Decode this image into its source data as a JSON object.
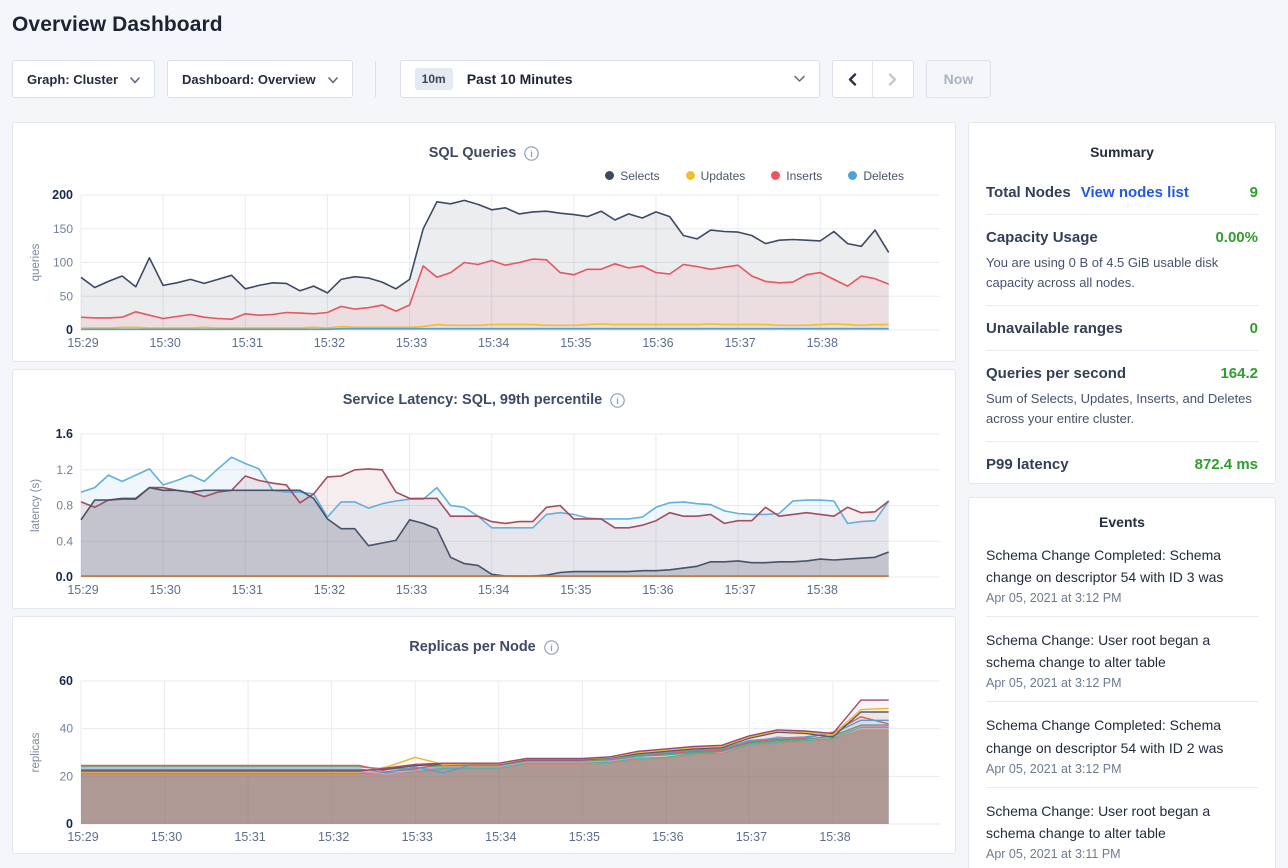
{
  "page_title": "Overview Dashboard",
  "toolbar": {
    "graph_label": "Graph: Cluster",
    "dashboard_label": "Dashboard: Overview",
    "time_badge": "10m",
    "time_label": "Past 10 Minutes",
    "now_label": "Now"
  },
  "summary": {
    "title": "Summary",
    "rows": [
      {
        "label": "Total Nodes",
        "link": "View nodes list",
        "value": "9"
      },
      {
        "label": "Capacity Usage",
        "value": "0.00%",
        "desc": "You are using 0 B of 4.5 GiB usable disk capacity across all nodes."
      },
      {
        "label": "Unavailable ranges",
        "value": "0"
      },
      {
        "label": "Queries per second",
        "value": "164.2",
        "desc": "Sum of Selects, Updates, Inserts, and Deletes across your entire cluster."
      },
      {
        "label": "P99 latency",
        "value": "872.4 ms"
      }
    ]
  },
  "events": {
    "title": "Events",
    "items": [
      {
        "text": "Schema Change Completed: Schema change on descriptor 54 with ID 3 was",
        "time": "Apr 05, 2021 at 3:12 PM"
      },
      {
        "text": "Schema Change: User root began a schema change to alter table",
        "time": "Apr 05, 2021 at 3:12 PM"
      },
      {
        "text": "Schema Change Completed: Schema change on descriptor 54 with ID 2 was",
        "time": "Apr 05, 2021 at 3:12 PM"
      },
      {
        "text": "Schema Change: User root began a schema change to alter table",
        "time": "Apr 05, 2021 at 3:11 PM"
      }
    ]
  },
  "colors": {
    "accent_green": "#2e9e2e",
    "link_blue": "#2458e4"
  },
  "chart_data": [
    {
      "type": "area",
      "title": "SQL Queries",
      "ylabel": "queries",
      "ylim": [
        0,
        200
      ],
      "yticks": [
        0,
        50,
        100,
        150,
        200
      ],
      "ytick_labels": [
        "0",
        "50",
        "100",
        "150",
        "200"
      ],
      "x_ticks": [
        "15:29",
        "15:30",
        "15:31",
        "15:32",
        "15:33",
        "15:34",
        "15:35",
        "15:36",
        "15:37",
        "15:38"
      ],
      "x_step_seconds": 10,
      "legend": true,
      "grid": true,
      "series": [
        {
          "name": "Selects",
          "color": "#3e4a63",
          "fill_opacity": 0.1,
          "values": [
            78,
            63,
            72,
            80,
            64,
            107,
            66,
            70,
            75,
            69,
            75,
            81,
            61,
            66,
            70,
            69,
            58,
            65,
            55,
            75,
            79,
            77,
            71,
            61,
            75,
            150,
            190,
            187,
            192,
            186,
            178,
            181,
            172,
            175,
            176,
            173,
            171,
            168,
            176,
            163,
            172,
            166,
            175,
            168,
            140,
            135,
            148,
            146,
            145,
            140,
            128,
            133,
            134,
            133,
            132,
            146,
            128,
            124,
            148,
            115
          ]
        },
        {
          "name": "Updates",
          "color": "#f2be2c",
          "fill_opacity": 0,
          "values": [
            3,
            3,
            3,
            4,
            4,
            3,
            3,
            3,
            3,
            4,
            3,
            3,
            3,
            3,
            3,
            3,
            3,
            4,
            3,
            5,
            4,
            4,
            4,
            4,
            4,
            5,
            8,
            7,
            7,
            7,
            8,
            8,
            8,
            8,
            7,
            7,
            7,
            8,
            9,
            8,
            8,
            8,
            8,
            8,
            8,
            8,
            9,
            8,
            8,
            8,
            8,
            7,
            7,
            7,
            8,
            9,
            8,
            7,
            8,
            8
          ]
        },
        {
          "name": "Inserts",
          "color": "#e8565f",
          "fill_opacity": 0.1,
          "values": [
            19,
            18,
            18,
            19,
            27,
            22,
            17,
            20,
            23,
            19,
            17,
            16,
            24,
            22,
            23,
            26,
            25,
            24,
            26,
            35,
            31,
            33,
            37,
            28,
            37,
            95,
            78,
            85,
            100,
            97,
            103,
            96,
            100,
            105,
            104,
            85,
            82,
            90,
            90,
            98,
            92,
            95,
            85,
            83,
            97,
            94,
            90,
            93,
            96,
            80,
            72,
            70,
            71,
            82,
            85,
            75,
            65,
            80,
            76,
            68
          ]
        },
        {
          "name": "Deletes",
          "color": "#4da3d9",
          "fill_opacity": 0,
          "values": [
            1,
            1,
            1,
            1,
            1,
            1,
            1,
            1,
            1,
            1,
            1,
            1,
            1,
            1,
            1,
            1,
            1,
            1,
            1,
            2,
            2,
            2,
            2,
            2,
            2,
            2,
            2,
            2,
            2,
            2,
            2,
            2,
            2,
            2,
            2,
            2,
            2,
            2,
            2,
            2,
            2,
            2,
            2,
            2,
            2,
            2,
            2,
            2,
            2,
            2,
            2,
            2,
            2,
            2,
            2,
            2,
            2,
            2,
            2,
            2
          ]
        }
      ]
    },
    {
      "type": "area",
      "title": "Service Latency: SQL, 99th percentile",
      "ylabel": "latency (s)",
      "ylim": [
        0,
        1.6
      ],
      "yticks": [
        0,
        0.4,
        0.8,
        1.2,
        1.6
      ],
      "ytick_labels": [
        "0.0",
        "0.4",
        "0.8",
        "1.2",
        "1.6"
      ],
      "x_ticks": [
        "15:29",
        "15:30",
        "15:31",
        "15:32",
        "15:33",
        "15:34",
        "15:35",
        "15:36",
        "15:37",
        "15:38"
      ],
      "x_step_seconds": 10,
      "legend": false,
      "grid": true,
      "series": [
        {
          "name": "series-blue",
          "color": "#62b0dd",
          "fill_opacity": 0.1,
          "values": [
            0.95,
            1.0,
            1.14,
            1.07,
            1.14,
            1.21,
            1.03,
            1.08,
            1.14,
            1.07,
            1.21,
            1.34,
            1.27,
            1.21,
            0.97,
            0.95,
            0.95,
            0.93,
            0.67,
            0.84,
            0.84,
            0.77,
            0.82,
            0.85,
            0.87,
            0.87,
            1.0,
            0.8,
            0.78,
            0.68,
            0.55,
            0.55,
            0.55,
            0.55,
            0.7,
            0.72,
            0.7,
            0.66,
            0.65,
            0.65,
            0.65,
            0.67,
            0.78,
            0.83,
            0.84,
            0.82,
            0.81,
            0.74,
            0.71,
            0.7,
            0.7,
            0.71,
            0.85,
            0.86,
            0.86,
            0.85,
            0.6,
            0.62,
            0.63,
            0.85
          ]
        },
        {
          "name": "series-maroon",
          "color": "#a34d5e",
          "fill_opacity": 0.1,
          "values": [
            0.84,
            0.78,
            0.86,
            0.87,
            0.87,
            1.0,
            1.0,
            0.97,
            0.95,
            0.9,
            0.95,
            0.97,
            1.13,
            1.08,
            1.05,
            1.03,
            0.83,
            0.93,
            1.12,
            1.13,
            1.2,
            1.21,
            1.2,
            0.95,
            0.88,
            0.88,
            0.88,
            0.68,
            0.68,
            0.68,
            0.62,
            0.6,
            0.62,
            0.62,
            0.78,
            0.8,
            0.65,
            0.65,
            0.65,
            0.55,
            0.55,
            0.58,
            0.63,
            0.72,
            0.68,
            0.68,
            0.7,
            0.6,
            0.63,
            0.63,
            0.78,
            0.68,
            0.7,
            0.72,
            0.7,
            0.68,
            0.78,
            0.72,
            0.73,
            0.85
          ]
        },
        {
          "name": "series-navy",
          "color": "#47526b",
          "fill_opacity": 0.22,
          "values": [
            0.64,
            0.86,
            0.86,
            0.88,
            0.88,
            1.0,
            0.97,
            0.97,
            0.95,
            0.97,
            0.97,
            0.97,
            0.97,
            0.97,
            0.97,
            0.97,
            0.97,
            0.88,
            0.65,
            0.54,
            0.54,
            0.35,
            0.38,
            0.41,
            0.64,
            0.6,
            0.54,
            0.22,
            0.15,
            0.13,
            0.03,
            0.01,
            0.01,
            0.01,
            0.02,
            0.05,
            0.06,
            0.06,
            0.06,
            0.06,
            0.06,
            0.07,
            0.07,
            0.08,
            0.1,
            0.12,
            0.17,
            0.17,
            0.18,
            0.16,
            0.16,
            0.17,
            0.17,
            0.18,
            0.2,
            0.19,
            0.2,
            0.21,
            0.22,
            0.28
          ]
        },
        {
          "name": "series-orange",
          "color": "#c0763c",
          "fill_opacity": 0,
          "values": [
            0.01,
            0.01,
            0.01,
            0.01,
            0.01,
            0.01,
            0.01,
            0.01,
            0.01,
            0.01,
            0.01,
            0.01,
            0.01,
            0.01,
            0.01,
            0.01,
            0.01,
            0.01,
            0.01,
            0.01,
            0.01,
            0.01,
            0.01,
            0.01,
            0.01,
            0.01,
            0.01,
            0.01,
            0.01,
            0.01,
            0.01,
            0.01,
            0.01,
            0.01,
            0.01,
            0.01,
            0.01,
            0.01,
            0.01,
            0.01,
            0.01,
            0.01,
            0.01,
            0.01,
            0.01,
            0.01,
            0.01,
            0.01,
            0.01,
            0.01,
            0.01,
            0.01,
            0.01,
            0.01,
            0.01,
            0.01,
            0.01,
            0.01,
            0.01,
            0.01
          ]
        }
      ]
    },
    {
      "type": "area",
      "title": "Replicas per Node",
      "ylabel": "replicas",
      "ylim": [
        0,
        60
      ],
      "yticks": [
        0,
        20,
        40,
        60
      ],
      "ytick_labels": [
        "0",
        "20",
        "40",
        "60"
      ],
      "x_ticks": [
        "15:29",
        "15:30",
        "15:31",
        "15:32",
        "15:33",
        "15:34",
        "15:35",
        "15:36",
        "15:37",
        "15:38"
      ],
      "x_step_seconds": 20,
      "legend": false,
      "grid": true,
      "base_fill": {
        "series": 0,
        "color": "#8d6a63",
        "opacity": 0.5
      },
      "series": [
        {
          "name": "node-1",
          "color": "#c98a7a",
          "fill_opacity": 0.06,
          "values": [
            21,
            21,
            21,
            21,
            21,
            21,
            21,
            21,
            21,
            21,
            21,
            21,
            21.5,
            23,
            23,
            23,
            25,
            25,
            25,
            25.5,
            27,
            27.5,
            29,
            29.5,
            33,
            34,
            34.5,
            35.5,
            39.5,
            39.5
          ]
        },
        {
          "name": "node-2",
          "color": "#47b8a6",
          "fill_opacity": 0.06,
          "values": [
            21.3,
            21.3,
            21.3,
            21.3,
            21.3,
            21.3,
            21.3,
            21.3,
            21.3,
            21.3,
            21.3,
            21.3,
            22,
            23.5,
            23.5,
            23.5,
            25.5,
            25.5,
            25.5,
            26,
            27.5,
            28,
            29.5,
            30,
            33.5,
            34.5,
            35,
            36,
            40.5,
            40.5
          ]
        },
        {
          "name": "node-3",
          "color": "#dd8fc0",
          "fill_opacity": 0.06,
          "values": [
            22,
            22,
            22,
            22,
            22,
            22,
            22,
            22,
            22,
            22,
            22,
            21,
            22.5,
            24,
            24,
            24,
            26,
            26,
            26,
            26.5,
            28,
            30,
            31,
            30,
            34,
            36.5,
            35.5,
            36.5,
            41,
            41
          ]
        },
        {
          "name": "node-4",
          "color": "#52ab77",
          "fill_opacity": 0.06,
          "values": [
            24,
            24,
            24,
            24,
            24,
            24,
            24,
            24,
            24,
            24,
            24,
            23,
            23.5,
            24.5,
            24.5,
            24.5,
            26.5,
            26.5,
            26.5,
            27,
            28.5,
            29,
            30,
            30.5,
            34,
            35,
            35.5,
            37,
            41.5,
            41.5
          ]
        },
        {
          "name": "node-5",
          "color": "#dd5c63",
          "fill_opacity": 0.06,
          "values": [
            24.6,
            24.6,
            24.6,
            24.6,
            24.6,
            24.6,
            24.6,
            24.6,
            24.6,
            24.6,
            24.6,
            22,
            23,
            25.5,
            25.5,
            24.8,
            26.8,
            26.8,
            26.8,
            27.2,
            29,
            29.5,
            30.5,
            31,
            34.5,
            35.5,
            36,
            38.5,
            45,
            42
          ]
        },
        {
          "name": "node-6",
          "color": "#5b9bd5",
          "fill_opacity": 0.06,
          "values": [
            23,
            23,
            23,
            23,
            23,
            23,
            23,
            23,
            23,
            23,
            23,
            21.5,
            24,
            21.5,
            24.7,
            24.7,
            27,
            27,
            27,
            27.5,
            29,
            30,
            31,
            31.5,
            35,
            36,
            36.5,
            38,
            43.5,
            43.5
          ]
        },
        {
          "name": "node-7",
          "color": "#565b67",
          "fill_opacity": 0.06,
          "values": [
            22.5,
            22.5,
            22.5,
            22.5,
            22.5,
            22.5,
            22.5,
            22.5,
            22.5,
            22.5,
            22.5,
            23,
            24.5,
            25,
            25,
            25,
            27,
            27,
            27,
            27.8,
            29.5,
            30.5,
            31.5,
            32,
            36,
            38.5,
            38,
            36.5,
            47,
            47
          ]
        },
        {
          "name": "node-8",
          "color": "#f0b429",
          "fill_opacity": 0.06,
          "values": [
            21.8,
            21.8,
            21.8,
            21.8,
            21.8,
            21.8,
            21.8,
            21.8,
            21.8,
            21.8,
            21.8,
            24,
            28,
            25,
            25.2,
            25.2,
            27.3,
            27.3,
            27.3,
            28,
            30,
            31,
            32,
            32.5,
            36.5,
            39,
            38.5,
            37.5,
            48,
            48.5
          ]
        },
        {
          "name": "node-9",
          "color": "#a04678",
          "fill_opacity": 0.06,
          "values": [
            22.2,
            22.2,
            22.2,
            22.2,
            22.2,
            22.2,
            22.2,
            22.2,
            22.2,
            22.2,
            22.2,
            23.5,
            25,
            25.5,
            25.5,
            25.5,
            27.5,
            27.5,
            27.5,
            28.2,
            30.5,
            31.5,
            32.5,
            33,
            37,
            39.5,
            39,
            38,
            52,
            52
          ]
        }
      ]
    }
  ]
}
